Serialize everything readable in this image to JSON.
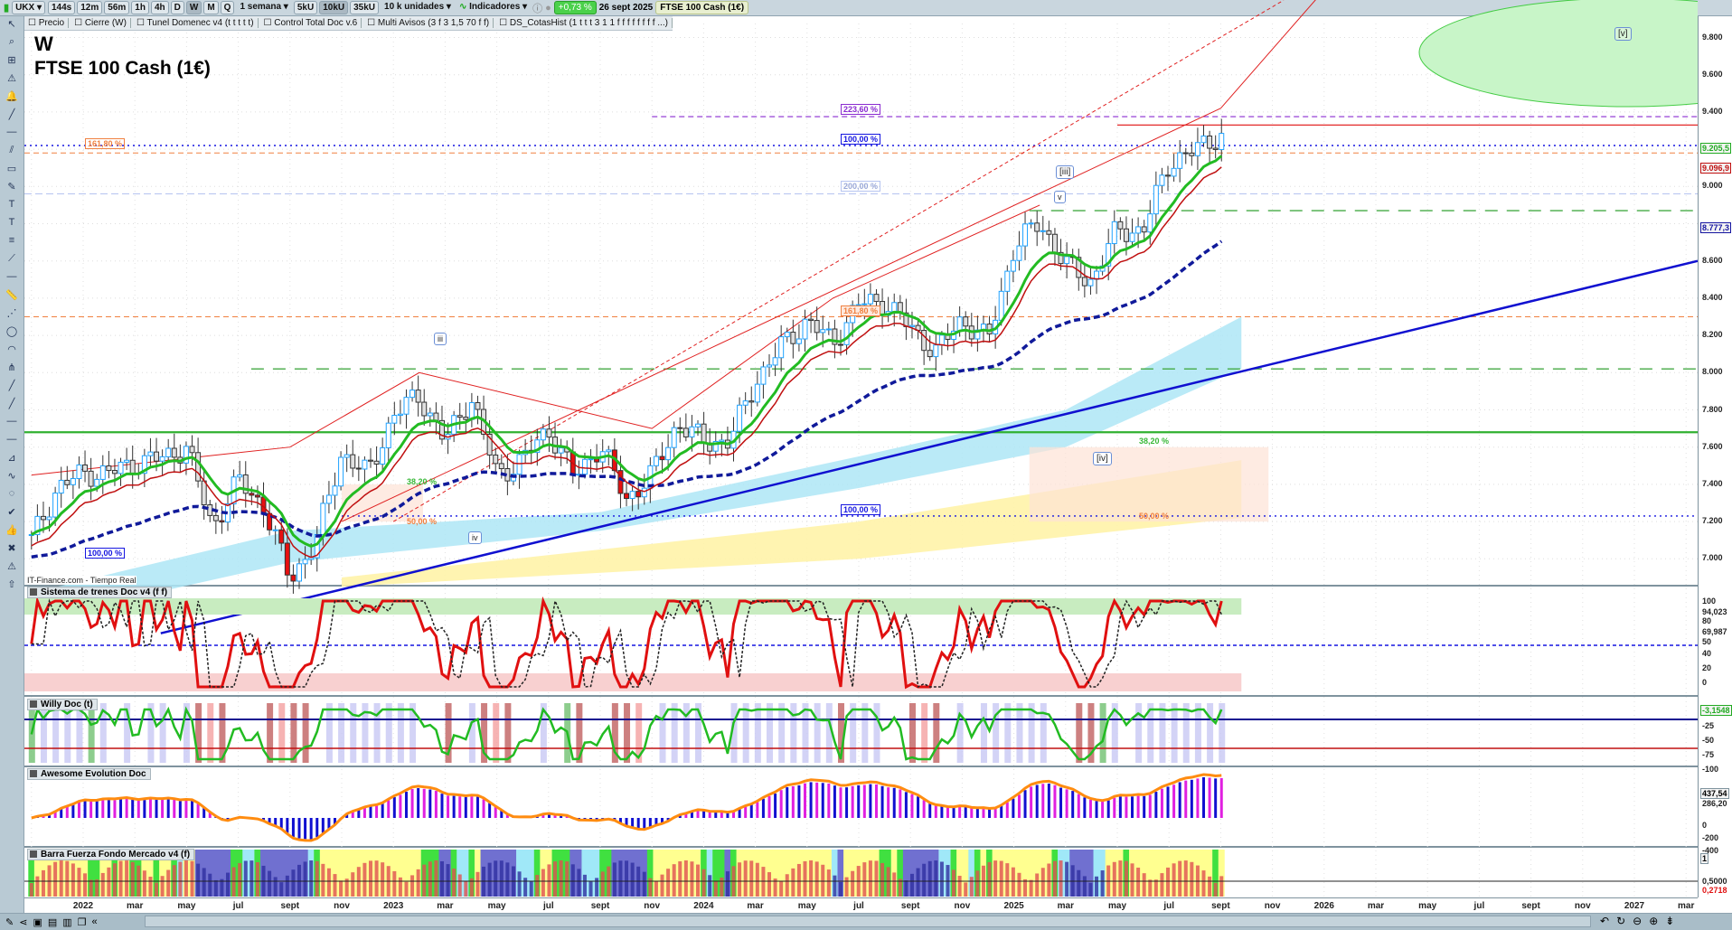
{
  "toolbar": {
    "symbol": "UKX",
    "timeframes": [
      "144s",
      "12m",
      "56m",
      "1h",
      "4h",
      "D",
      "W",
      "M",
      "Q"
    ],
    "selected_timeframe": "W",
    "period": "1 semana",
    "units": [
      "5kU",
      "10kU",
      "35kU"
    ],
    "selected_unit": "10kU",
    "units_select": "10 k unidades",
    "indicators": "Indicadores",
    "change": "+0,73 %",
    "date": "26 sept 2025",
    "instrument": "FTSE 100 Cash (1€)"
  },
  "legend": [
    "Precio",
    "Cierre (W)",
    "Tunel Domenec v4 (t t t t t)",
    "Control Total Doc v.6",
    "Multi Avisos (3 f 3 1,5 70 f f)",
    "DS_CotasHist (1 t t t 3 1 1 f f f f f f f f ...)"
  ],
  "chart": {
    "title1": "W",
    "title2": "FTSE 100 Cash (1€)",
    "source": "IT-Finance.com - Tiempo Real",
    "price_ticks": [
      "9.800",
      "9.600",
      "9.400",
      "9.000",
      "8.600",
      "8.400",
      "8.200",
      "8.000",
      "7.800",
      "7.600",
      "7.400",
      "7.200",
      "7.000"
    ],
    "price_tags": {
      "last": "9.205,5",
      "red": "9.096,9",
      "blue": "8.777,3"
    },
    "fib_labels": {
      "f223": "223,60 %",
      "f100a": "100,00 %",
      "f200": "200,00 %",
      "f161a": "161,80 %",
      "f161b": "161,80 %",
      "f382a": "38,20 %",
      "f50a": "50,00 %",
      "f382b": "38,20 %",
      "f50b": "50,00 %",
      "f100b": "100,00 %",
      "f100c": "100,00 %"
    },
    "waves": {
      "w3": "[iii]",
      "wv": "v",
      "w4": "[iv]",
      "w5": "[v]",
      "wiii": "iii",
      "wiv": "iv"
    },
    "colors": {
      "up": "#1fa2ff",
      "down": "#d01010",
      "ema_fast": "#22bb22",
      "ema_slow": "#101a9a",
      "trend": "#1010d0"
    }
  },
  "chart_data": {
    "type": "candlestick",
    "interval": "weekly",
    "monthly_closes_from": "2021-11",
    "closes": [
      7100,
      7380,
      7460,
      7460,
      7515,
      7540,
      7600,
      7170,
      7420,
      7280,
      6890,
      7090,
      7570,
      7450,
      7770,
      7880,
      7630,
      7870,
      7450,
      7530,
      7700,
      7440,
      7610,
      7320,
      7450,
      7730,
      7630,
      7630,
      7950,
      8140,
      8280,
      8160,
      8370,
      8380,
      8240,
      8110,
      8290,
      8170,
      8670,
      8810,
      8580,
      8490,
      8770,
      8760,
      9130,
      9190,
      9285
    ]
  },
  "panels": [
    {
      "title": "Sistema de trenes Doc v4 (f f)",
      "ticks": [
        "100",
        "94,023",
        "80",
        "69,987",
        "50",
        "40",
        "20",
        "0"
      ]
    },
    {
      "title": "Willy Doc (t)",
      "ticks": [
        "-3,1548",
        "-25",
        "-50",
        "-75",
        "-100"
      ]
    },
    {
      "title": "Awesome Evolution Doc",
      "ticks": [
        "437,54",
        "286,20",
        "0",
        "-200",
        "-400"
      ]
    },
    {
      "title": "Barra Fuerza Fondo Mercado v4 (f)",
      "ticks": [
        "1",
        "0,5000",
        "0,2718"
      ]
    }
  ],
  "xaxis": [
    "2022",
    "mar",
    "may",
    "jul",
    "sept",
    "nov",
    "2023",
    "mar",
    "may",
    "jul",
    "sept",
    "nov",
    "2024",
    "mar",
    "may",
    "jul",
    "sept",
    "nov",
    "2025",
    "mar",
    "may",
    "jul",
    "sept",
    "nov",
    "2026",
    "mar",
    "may",
    "jul",
    "sept",
    "nov",
    "2027",
    "mar"
  ]
}
